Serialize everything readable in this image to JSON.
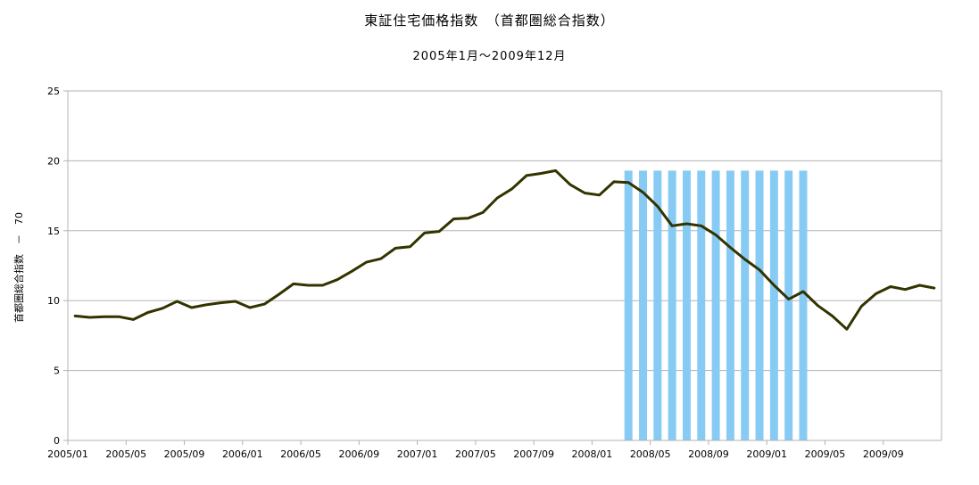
{
  "chart_data": {
    "type": "line",
    "title": "東証住宅価格指数　（首都圏総合指数）",
    "subtitle": "2005年1月～2009年12月",
    "xlabel": "",
    "ylabel": "首都圏総合指数　－　70",
    "ylim": [
      0,
      25
    ],
    "yticks": [
      "0",
      "5",
      "10",
      "15",
      "20",
      "25"
    ],
    "xtick_labels": [
      "2005/01",
      "2005/05",
      "2005/09",
      "2006/01",
      "2006/05",
      "2006/09",
      "2007/01",
      "2007/05",
      "2007/09",
      "2008/01",
      "2008/05",
      "2008/09",
      "2009/01",
      "2009/05",
      "2009/09"
    ],
    "grid": true,
    "legend": "none",
    "line_color": "#333300",
    "shade_color": "#87CBF5",
    "shade_height": 19.3,
    "shaded_months": [
      "2008/03",
      "2008/04",
      "2008/05",
      "2008/06",
      "2008/07",
      "2008/08",
      "2008/09",
      "2008/10",
      "2008/11",
      "2008/12",
      "2009/01",
      "2009/02",
      "2009/03"
    ],
    "x": [
      "2005/01",
      "2005/02",
      "2005/03",
      "2005/04",
      "2005/05",
      "2005/06",
      "2005/07",
      "2005/08",
      "2005/09",
      "2005/10",
      "2005/11",
      "2005/12",
      "2006/01",
      "2006/02",
      "2006/03",
      "2006/04",
      "2006/05",
      "2006/06",
      "2006/07",
      "2006/08",
      "2006/09",
      "2006/10",
      "2006/11",
      "2006/12",
      "2007/01",
      "2007/02",
      "2007/03",
      "2007/04",
      "2007/05",
      "2007/06",
      "2007/07",
      "2007/08",
      "2007/09",
      "2007/10",
      "2007/11",
      "2007/12",
      "2008/01",
      "2008/02",
      "2008/03",
      "2008/04",
      "2008/05",
      "2008/06",
      "2008/07",
      "2008/08",
      "2008/09",
      "2008/10",
      "2008/11",
      "2008/12",
      "2009/01",
      "2009/02",
      "2009/03",
      "2009/04",
      "2009/05",
      "2009/06",
      "2009/07",
      "2009/08",
      "2009/09",
      "2009/10",
      "2009/11",
      "2009/12"
    ],
    "values": [
      8.9,
      8.8,
      8.85,
      8.85,
      8.65,
      9.15,
      9.45,
      9.95,
      9.5,
      9.7,
      9.85,
      9.95,
      9.5,
      9.75,
      10.45,
      11.2,
      11.1,
      11.1,
      11.5,
      12.1,
      12.75,
      13.0,
      13.75,
      13.85,
      14.85,
      14.95,
      15.85,
      15.9,
      16.3,
      17.35,
      18.0,
      18.95,
      19.1,
      19.3,
      18.3,
      17.7,
      17.55,
      18.5,
      18.45,
      17.75,
      16.75,
      15.35,
      15.5,
      15.35,
      14.7,
      13.8,
      12.95,
      12.2,
      11.1,
      10.1,
      10.65,
      9.65,
      8.9,
      7.95,
      9.6,
      10.5,
      11.0,
      10.8,
      11.1,
      10.9
    ]
  }
}
